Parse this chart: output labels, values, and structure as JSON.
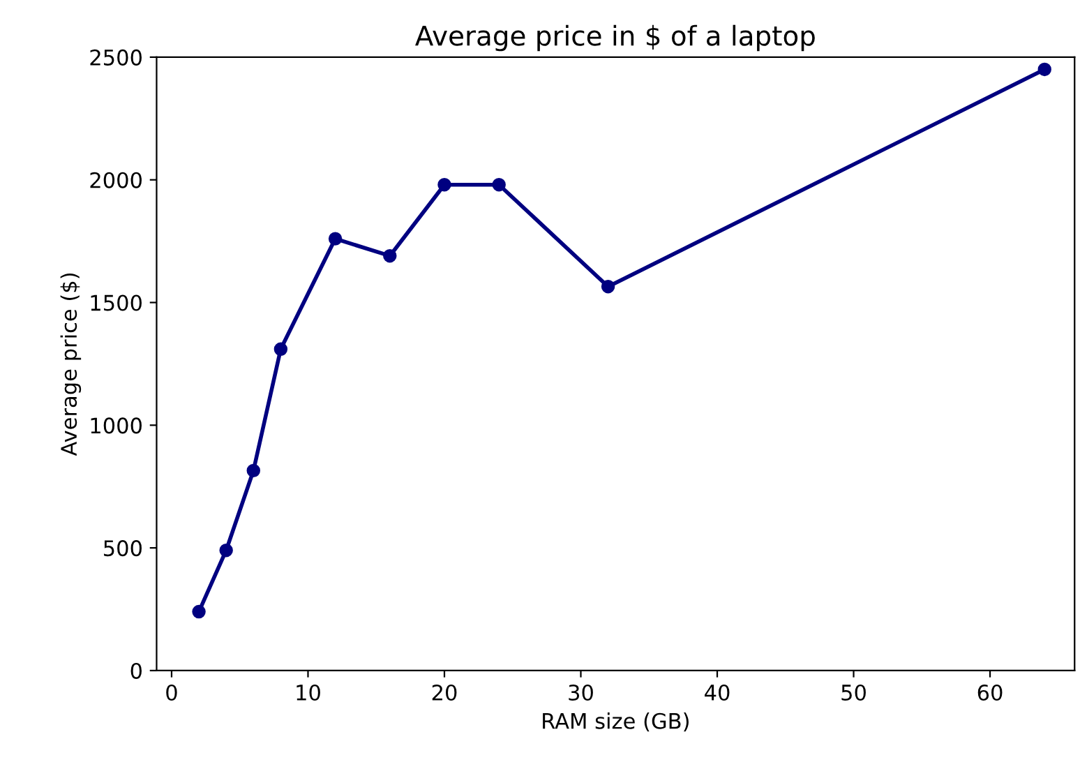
{
  "chart_data": {
    "type": "line",
    "title": "Average price in $ of a laptop",
    "xlabel": "RAM size (GB)",
    "ylabel": "Average price ($)",
    "x": [
      2,
      4,
      6,
      8,
      12,
      16,
      20,
      24,
      32,
      64
    ],
    "series": [
      {
        "color": "#000080",
        "values": [
          240,
          490,
          815,
          1310,
          1760,
          1690,
          1980,
          1980,
          1565,
          2450
        ]
      }
    ],
    "xlim": [
      -1.1,
      66.2
    ],
    "xticks": [
      0,
      10,
      20,
      30,
      40,
      50,
      60
    ],
    "ylim": [
      0,
      2500
    ],
    "yticks": [
      0,
      500,
      1000,
      1500,
      2000,
      2500
    ],
    "marker": "circle",
    "line_style": "solid",
    "grid": false,
    "legend": false
  }
}
